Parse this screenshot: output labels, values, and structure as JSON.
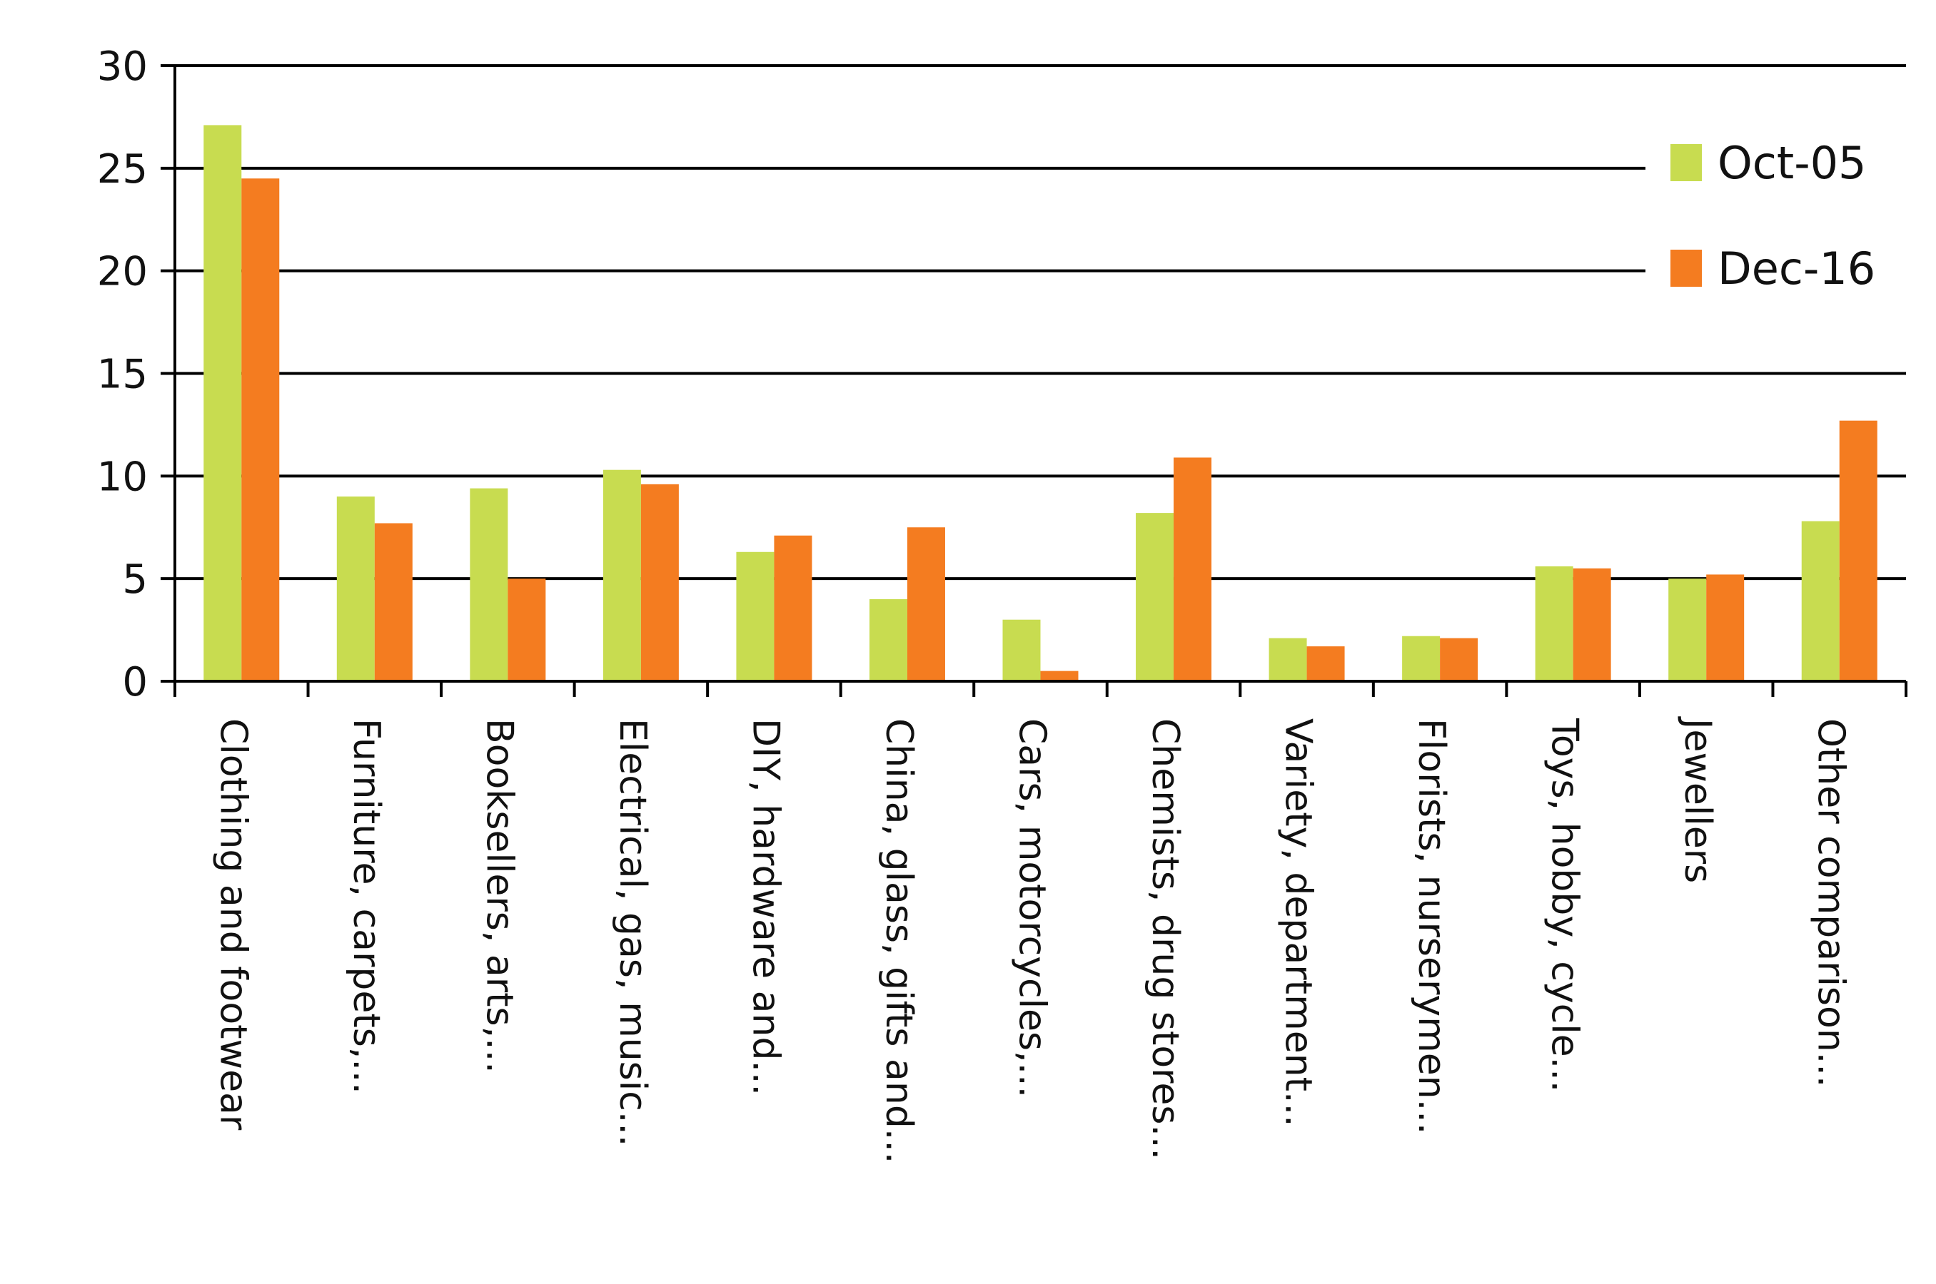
{
  "chart_data": {
    "type": "bar",
    "categories": [
      "Clothing and footwear",
      "Furniture, carpets,...",
      "Booksellers, arts,...",
      "Electrical, gas, music...",
      "DIY, hardware and...",
      "China, glass, gifts and...",
      "Cars, motorcycles,...",
      "Chemists, drug stores...",
      "Variety, department...",
      "Florists, nurserymen...",
      "Toys, hobby, cycle...",
      "Jewellers",
      "Other comparison..."
    ],
    "series": [
      {
        "name": "Oct-05",
        "color": "#c8dc50",
        "values": [
          27.1,
          9.0,
          9.4,
          10.3,
          6.3,
          4.0,
          3.0,
          8.2,
          2.1,
          2.2,
          5.6,
          5.0,
          7.8
        ]
      },
      {
        "name": "Dec-16",
        "color": "#f47c20",
        "values": [
          24.5,
          7.7,
          5.0,
          9.6,
          7.1,
          7.5,
          0.5,
          10.9,
          1.7,
          2.1,
          5.5,
          5.2,
          12.7
        ]
      }
    ],
    "yticks": [
      "0",
      "5",
      "10",
      "15",
      "20",
      "25",
      "30"
    ],
    "ylim": [
      0,
      30
    ],
    "grid": true,
    "legend_position": "top-right",
    "gridline_color": "#000000"
  }
}
